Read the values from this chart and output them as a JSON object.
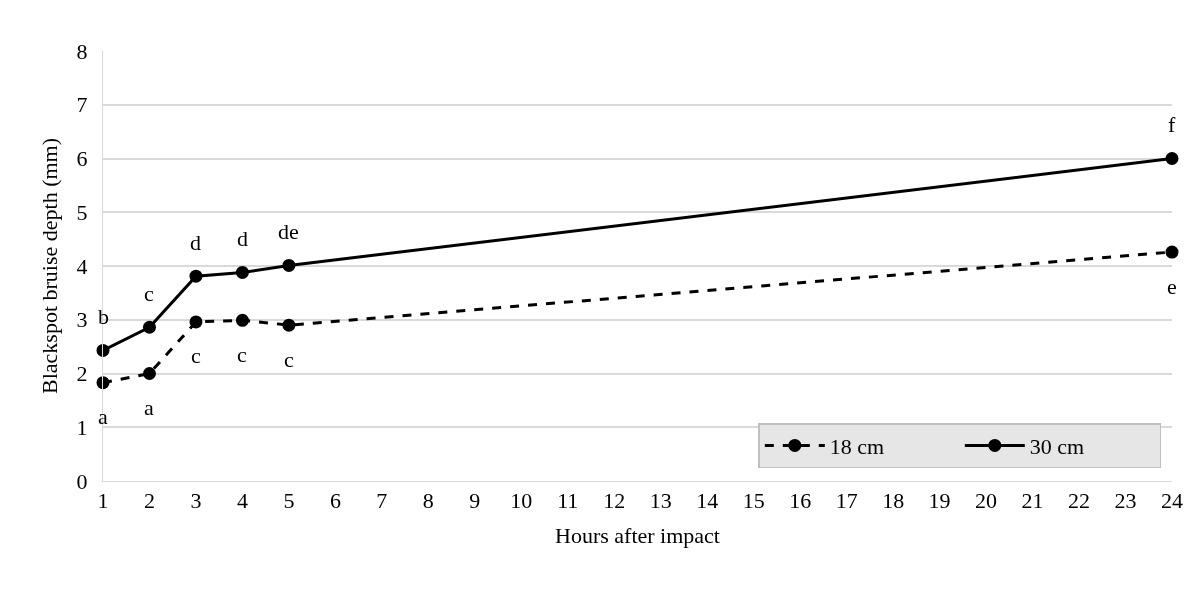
{
  "chart_data": {
    "type": "line",
    "xlabel": "Hours after impact",
    "ylabel": "Blackspot bruise depth (mm)",
    "x": [
      1,
      2,
      3,
      4,
      5,
      24
    ],
    "series": [
      {
        "name": "18 cm",
        "color": "#000000",
        "line_style": "dashed",
        "values": [
          1.83,
          2.0,
          2.96,
          2.99,
          2.9,
          4.26
        ]
      },
      {
        "name": "30 cm",
        "color": "#000000",
        "line_style": "solid",
        "values": [
          2.43,
          2.86,
          3.81,
          3.88,
          4.01,
          6.0
        ]
      }
    ],
    "xlim": [
      1,
      24
    ],
    "xticks": [
      1,
      2,
      3,
      4,
      5,
      6,
      7,
      8,
      9,
      10,
      11,
      12,
      13,
      14,
      15,
      16,
      17,
      18,
      19,
      20,
      21,
      22,
      23,
      24
    ],
    "ylim": [
      0,
      8
    ],
    "yticks": [
      0,
      1,
      2,
      3,
      4,
      5,
      6,
      7,
      8
    ],
    "grid": "y",
    "legend": "bottom right",
    "marker": "circle",
    "annotations": [
      {
        "text": "a",
        "x": 1,
        "y": 1.83
      },
      {
        "text": "a",
        "x": 2,
        "y": 2.0
      },
      {
        "text": "c",
        "x": 3,
        "y": 2.96
      },
      {
        "text": "c",
        "x": 4,
        "y": 2.99
      },
      {
        "text": "c",
        "x": 5,
        "y": 2.9
      },
      {
        "text": "e",
        "x": 24,
        "y": 4.26
      },
      {
        "text": "b",
        "x": 1,
        "y": 2.43
      },
      {
        "text": "c",
        "x": 2,
        "y": 2.86
      },
      {
        "text": "d",
        "x": 3,
        "y": 3.81
      },
      {
        "text": "d",
        "x": 4,
        "y": 3.88
      },
      {
        "text": "de",
        "x": 5,
        "y": 4.01
      },
      {
        "text": "f",
        "x": 24,
        "y": 6.0
      }
    ]
  }
}
